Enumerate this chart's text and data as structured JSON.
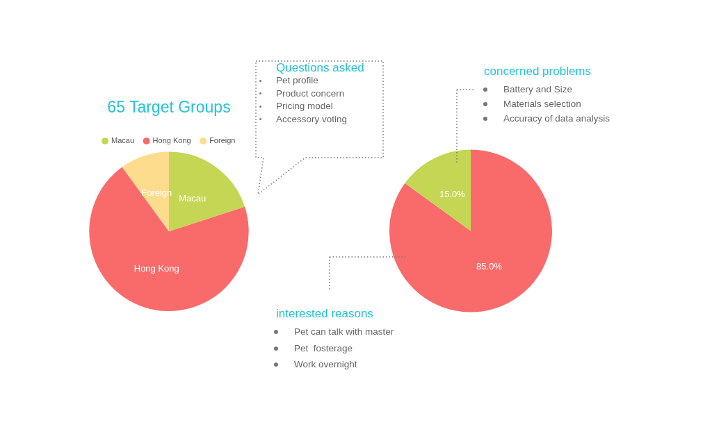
{
  "chart_data": [
    {
      "type": "pie",
      "title": "65 Target Groups",
      "categories": [
        "Macau",
        "Hong Kong",
        "Foreign"
      ],
      "values": [
        20,
        70,
        10
      ],
      "colors": [
        "#c5d654",
        "#f96b6b",
        "#fedc8d"
      ],
      "legend": "top",
      "data_labels": false
    },
    {
      "type": "pie",
      "categories": [
        null,
        null
      ],
      "values": [
        85,
        15
      ],
      "colors": [
        "#f96b6b",
        "#c5d654"
      ],
      "value_labels": [
        "85.0%",
        "15.0%"
      ],
      "legend": false
    },
    {
      "type": "other",
      "title": "Questions asked",
      "annotations": [
        "Pet profile",
        "Product concern",
        "Pricing model",
        "Accessory voting"
      ]
    },
    {
      "type": "other",
      "title": "concerned problems",
      "annotations": [
        "Battery and Size",
        "Materials selection",
        "Accuracy of data analysis"
      ]
    },
    {
      "type": "other",
      "title": "interested reasons",
      "annotations": [
        "Pet can talk with master",
        "Pet  fosterage",
        "Work overnight"
      ]
    }
  ]
}
